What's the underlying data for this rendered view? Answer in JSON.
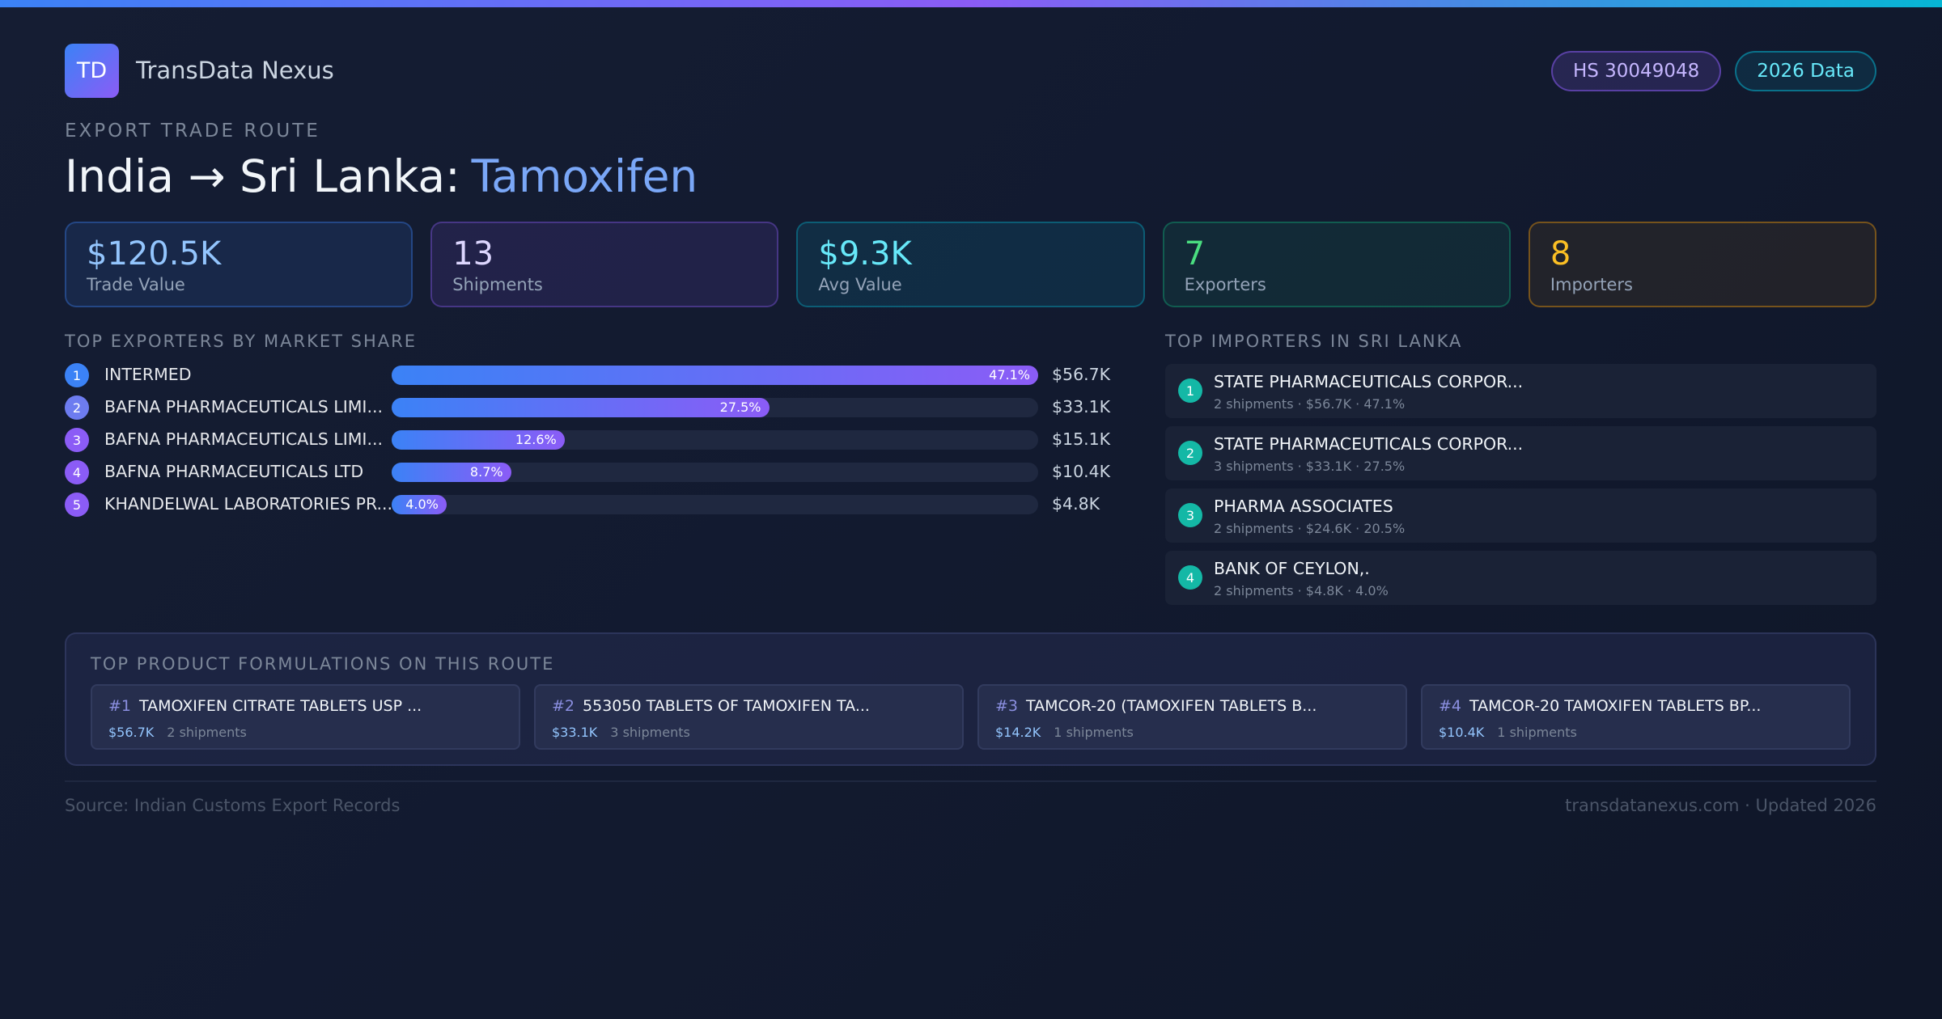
{
  "header": {
    "logo": "TD",
    "brand": "TransData Nexus",
    "badges": [
      "HS 30049048",
      "2026 Data"
    ]
  },
  "eyebrow": "EXPORT TRADE ROUTE",
  "title": {
    "route": "India → Sri Lanka:",
    "product": "Tamoxifen"
  },
  "stats": [
    {
      "value": "$120.5K",
      "label": "Trade Value"
    },
    {
      "value": "13",
      "label": "Shipments"
    },
    {
      "value": "$9.3K",
      "label": "Avg Value"
    },
    {
      "value": "7",
      "label": "Exporters"
    },
    {
      "value": "8",
      "label": "Importers"
    }
  ],
  "exporters": {
    "title": "TOP EXPORTERS BY MARKET SHARE",
    "ranks": [
      "1",
      "2",
      "3",
      "4",
      "5"
    ],
    "names": [
      "INTERMED",
      "BAFNA PHARMACEUTICALS LIMI...",
      "BAFNA PHARMACEUTICALS LIMI...",
      "BAFNA PHARMACEUTICALS LTD",
      "KHANDELWAL LABORATORIES PR..."
    ],
    "values": [
      47.1,
      27.5,
      12.6,
      8.7,
      4.0
    ],
    "value_labels": [
      "47.1%",
      "27.5%",
      "12.6%",
      "8.7%",
      "4.0%"
    ],
    "amounts": [
      "$56.7K",
      "$33.1K",
      "$15.1K",
      "$10.4K",
      "$4.8K"
    ]
  },
  "importers": {
    "title": "TOP IMPORTERS IN SRI LANKA",
    "items": [
      {
        "rank": "1",
        "name": "STATE PHARMACEUTICALS CORPOR...",
        "detail": "2 shipments · $56.7K · 47.1%"
      },
      {
        "rank": "2",
        "name": "STATE PHARMACEUTICALS CORPOR...",
        "detail": "3 shipments · $33.1K · 27.5%"
      },
      {
        "rank": "3",
        "name": "PHARMA ASSOCIATES",
        "detail": "2 shipments · $24.6K · 20.5%"
      },
      {
        "rank": "4",
        "name": "BANK OF CEYLON,.",
        "detail": "2 shipments · $4.8K · 4.0%"
      }
    ]
  },
  "formulations": {
    "title": "TOP PRODUCT FORMULATIONS ON THIS ROUTE",
    "items": [
      {
        "rank": "#1",
        "name": "TAMOXIFEN CITRATE TABLETS USP ...",
        "value": "$56.7K",
        "shipments": "2 shipments"
      },
      {
        "rank": "#2",
        "name": "553050 TABLETS OF TAMOXIFEN TA...",
        "value": "$33.1K",
        "shipments": "3 shipments"
      },
      {
        "rank": "#3",
        "name": "TAMCOR-20 (TAMOXIFEN TABLETS B...",
        "value": "$14.2K",
        "shipments": "1 shipments"
      },
      {
        "rank": "#4",
        "name": "TAMCOR-20 TAMOXIFEN TABLETS BP...",
        "value": "$10.4K",
        "shipments": "1 shipments"
      }
    ]
  },
  "footer": {
    "source": "Source: Indian Customs Export Records",
    "site": "transdatanexus.com · Updated 2026"
  }
}
